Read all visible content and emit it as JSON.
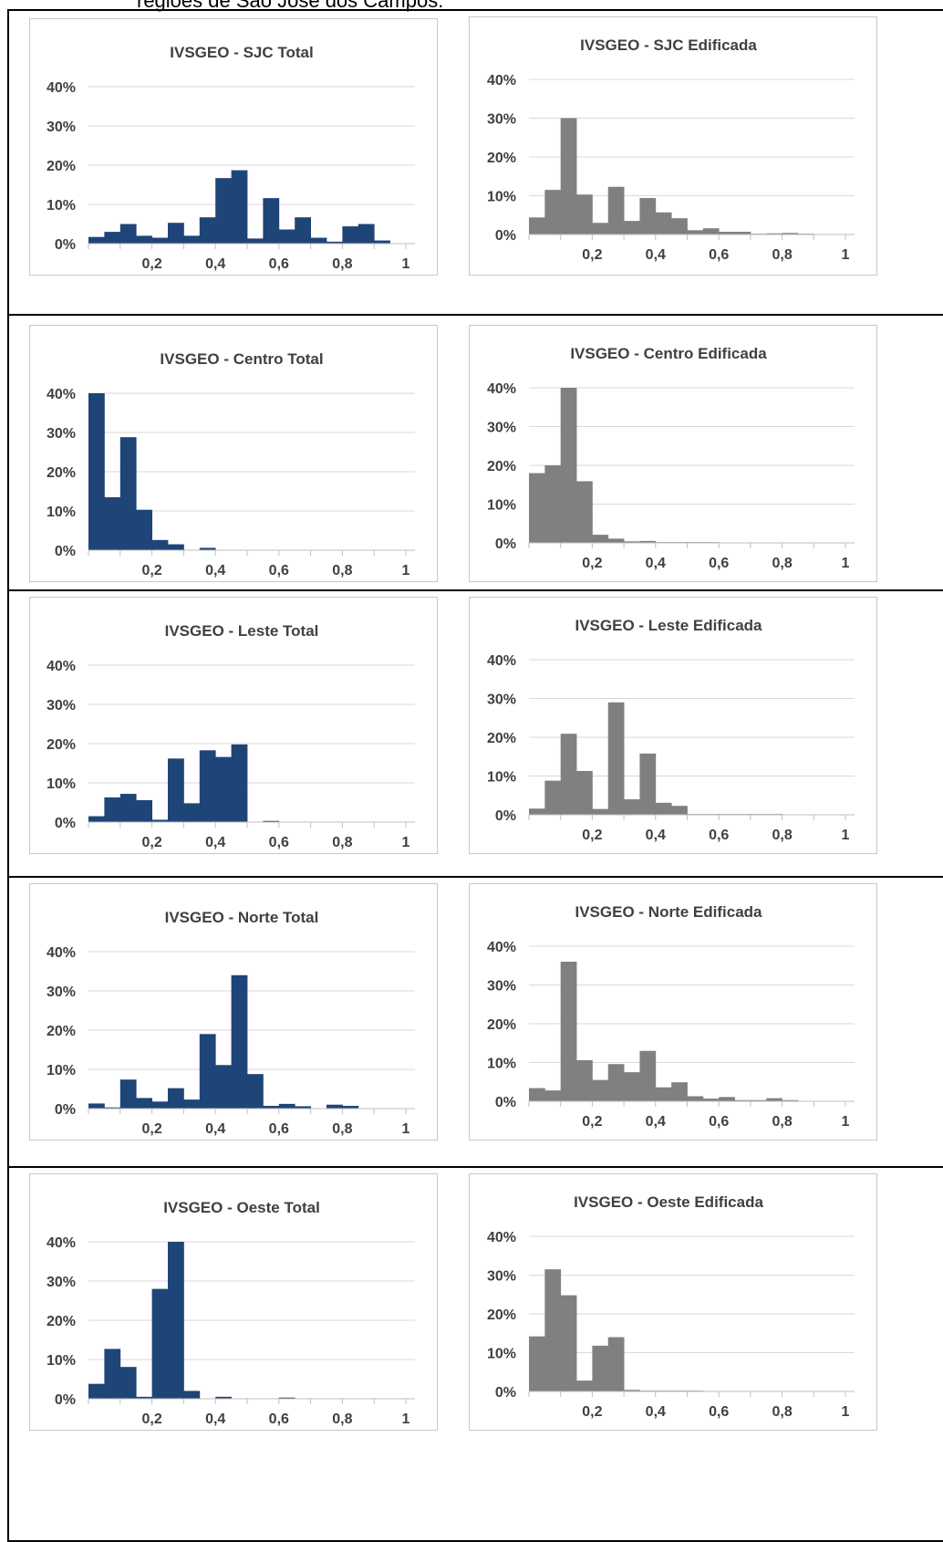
{
  "caption": "regiões de São José dos Campos.",
  "colors": {
    "total": "#1f4478",
    "edificada": "#808080",
    "grid": "#d9d9d9",
    "axis": "#bfbfbf",
    "text": "#404040"
  },
  "chart_data": [
    {
      "type": "bar",
      "title": "IVSGEO - SJC Total",
      "bins": 20,
      "xlim": [
        0,
        1
      ],
      "ylim": [
        0,
        40
      ],
      "xticks": [
        "0,2",
        "0,4",
        "0,6",
        "0,8",
        "1"
      ],
      "yticks": [
        "0%",
        "10%",
        "20%",
        "30%",
        "40%"
      ],
      "values": [
        1.7,
        3,
        5,
        2,
        1.5,
        5.3,
        2,
        6.7,
        16.7,
        18.7,
        1.3,
        11.6,
        3.6,
        6.7,
        1.5,
        0.5,
        4.4,
        5,
        0.8,
        0
      ],
      "grid": true
    },
    {
      "type": "bar",
      "title": "IVSGEO - SJC Edificada",
      "bins": 20,
      "xlim": [
        0,
        1
      ],
      "ylim": [
        0,
        40
      ],
      "xticks": [
        "0,2",
        "0,4",
        "0,6",
        "0,8",
        "1"
      ],
      "yticks": [
        "0%",
        "10%",
        "20%",
        "30%",
        "40%"
      ],
      "values": [
        4.4,
        11.5,
        30,
        10.3,
        3,
        12.3,
        3.5,
        9.4,
        5.7,
        4.2,
        1.1,
        1.6,
        0.7,
        0.7,
        0.2,
        0.3,
        0.4,
        0.2,
        0.1,
        0
      ],
      "grid": true
    },
    {
      "type": "bar",
      "title": "IVSGEO - Centro Total",
      "bins": 20,
      "xlim": [
        0,
        1
      ],
      "ylim": [
        0,
        40
      ],
      "xticks": [
        "0,2",
        "0,4",
        "0,6",
        "0,8",
        "1"
      ],
      "yticks": [
        "0%",
        "10%",
        "20%",
        "30%",
        "40%"
      ],
      "values": [
        40,
        13.5,
        28.8,
        10.3,
        2.6,
        1.5,
        0,
        0.6,
        0,
        0,
        0,
        0,
        0,
        0,
        0,
        0,
        0,
        0,
        0,
        0
      ],
      "grid": true
    },
    {
      "type": "bar",
      "title": "IVSGEO - Centro Edificada",
      "bins": 20,
      "xlim": [
        0,
        1
      ],
      "ylim": [
        0,
        40
      ],
      "xticks": [
        "0,2",
        "0,4",
        "0,6",
        "0,8",
        "1"
      ],
      "yticks": [
        "0%",
        "10%",
        "20%",
        "30%",
        "40%"
      ],
      "values": [
        18,
        20,
        40,
        15.9,
        2.1,
        1.1,
        0.4,
        0.5,
        0.2,
        0.2,
        0.2,
        0.2,
        0,
        0,
        0,
        0,
        0,
        0,
        0,
        0
      ],
      "grid": true
    },
    {
      "type": "bar",
      "title": "IVSGEO - Leste Total",
      "bins": 20,
      "xlim": [
        0,
        1
      ],
      "ylim": [
        0,
        40
      ],
      "xticks": [
        "0,2",
        "0,4",
        "0,6",
        "0,8",
        "1"
      ],
      "yticks": [
        "0%",
        "10%",
        "20%",
        "30%",
        "40%"
      ],
      "values": [
        1.5,
        6.3,
        7.2,
        5.6,
        0.6,
        16.2,
        4.8,
        18.3,
        16.6,
        19.8,
        0,
        0.3,
        0,
        0,
        0,
        0,
        0,
        0,
        0,
        0
      ],
      "grid": true
    },
    {
      "type": "bar",
      "title": "IVSGEO - Leste Edificada",
      "bins": 20,
      "xlim": [
        0,
        1
      ],
      "ylim": [
        0,
        40
      ],
      "xticks": [
        "0,2",
        "0,4",
        "0,6",
        "0,8",
        "1"
      ],
      "yticks": [
        "0%",
        "10%",
        "20%",
        "30%",
        "40%"
      ],
      "values": [
        1.6,
        8.8,
        20.9,
        11.3,
        1.5,
        29,
        4,
        15.8,
        3.1,
        2.3,
        0.2,
        0.2,
        0.2,
        0.2,
        0.2,
        0.2,
        0.1,
        0,
        0,
        0
      ],
      "grid": true
    },
    {
      "type": "bar",
      "title": "IVSGEO - Norte Total",
      "bins": 20,
      "xlim": [
        0,
        1
      ],
      "ylim": [
        0,
        40
      ],
      "xticks": [
        "0,2",
        "0,4",
        "0,6",
        "0,8",
        "1"
      ],
      "yticks": [
        "0%",
        "10%",
        "20%",
        "30%",
        "40%"
      ],
      "values": [
        1.3,
        0.3,
        7.4,
        2.7,
        1.8,
        5.2,
        2.3,
        19,
        11.1,
        34,
        8.8,
        0.7,
        1.2,
        0.6,
        0,
        1,
        0.7,
        0,
        0,
        0
      ],
      "grid": true
    },
    {
      "type": "bar",
      "title": "IVSGEO - Norte Edificada",
      "bins": 20,
      "xlim": [
        0,
        1
      ],
      "ylim": [
        0,
        40
      ],
      "xticks": [
        "0,2",
        "0,4",
        "0,6",
        "0,8",
        "1"
      ],
      "yticks": [
        "0%",
        "10%",
        "20%",
        "30%",
        "40%"
      ],
      "values": [
        3.4,
        2.8,
        36,
        10.6,
        5.5,
        9.6,
        7.5,
        13,
        3.6,
        4.9,
        1.3,
        0.7,
        1.1,
        0.3,
        0.3,
        0.8,
        0.3,
        0,
        0,
        0
      ],
      "grid": true
    },
    {
      "type": "bar",
      "title": "IVSGEO - Oeste Total",
      "bins": 20,
      "xlim": [
        0,
        1
      ],
      "ylim": [
        0,
        40
      ],
      "xticks": [
        "0,2",
        "0,4",
        "0,6",
        "0,8",
        "1"
      ],
      "yticks": [
        "0%",
        "10%",
        "20%",
        "30%",
        "40%"
      ],
      "values": [
        3.8,
        12.7,
        8.1,
        0.5,
        28,
        40,
        2,
        0,
        0.5,
        0,
        0,
        0,
        0.3,
        0,
        0,
        0,
        0,
        0,
        0,
        0
      ],
      "grid": true
    },
    {
      "type": "bar",
      "title": "IVSGEO - Oeste Edificada",
      "bins": 20,
      "xlim": [
        0,
        1
      ],
      "ylim": [
        0,
        40
      ],
      "xticks": [
        "0,2",
        "0,4",
        "0,6",
        "0,8",
        "1"
      ],
      "yticks": [
        "0%",
        "10%",
        "20%",
        "30%",
        "40%"
      ],
      "values": [
        14.2,
        31.5,
        24.8,
        2.8,
        11.8,
        14,
        0.4,
        0.2,
        0.2,
        0.2,
        0.2,
        0,
        0,
        0,
        0,
        0,
        0,
        0,
        0,
        0
      ],
      "grid": true
    }
  ]
}
